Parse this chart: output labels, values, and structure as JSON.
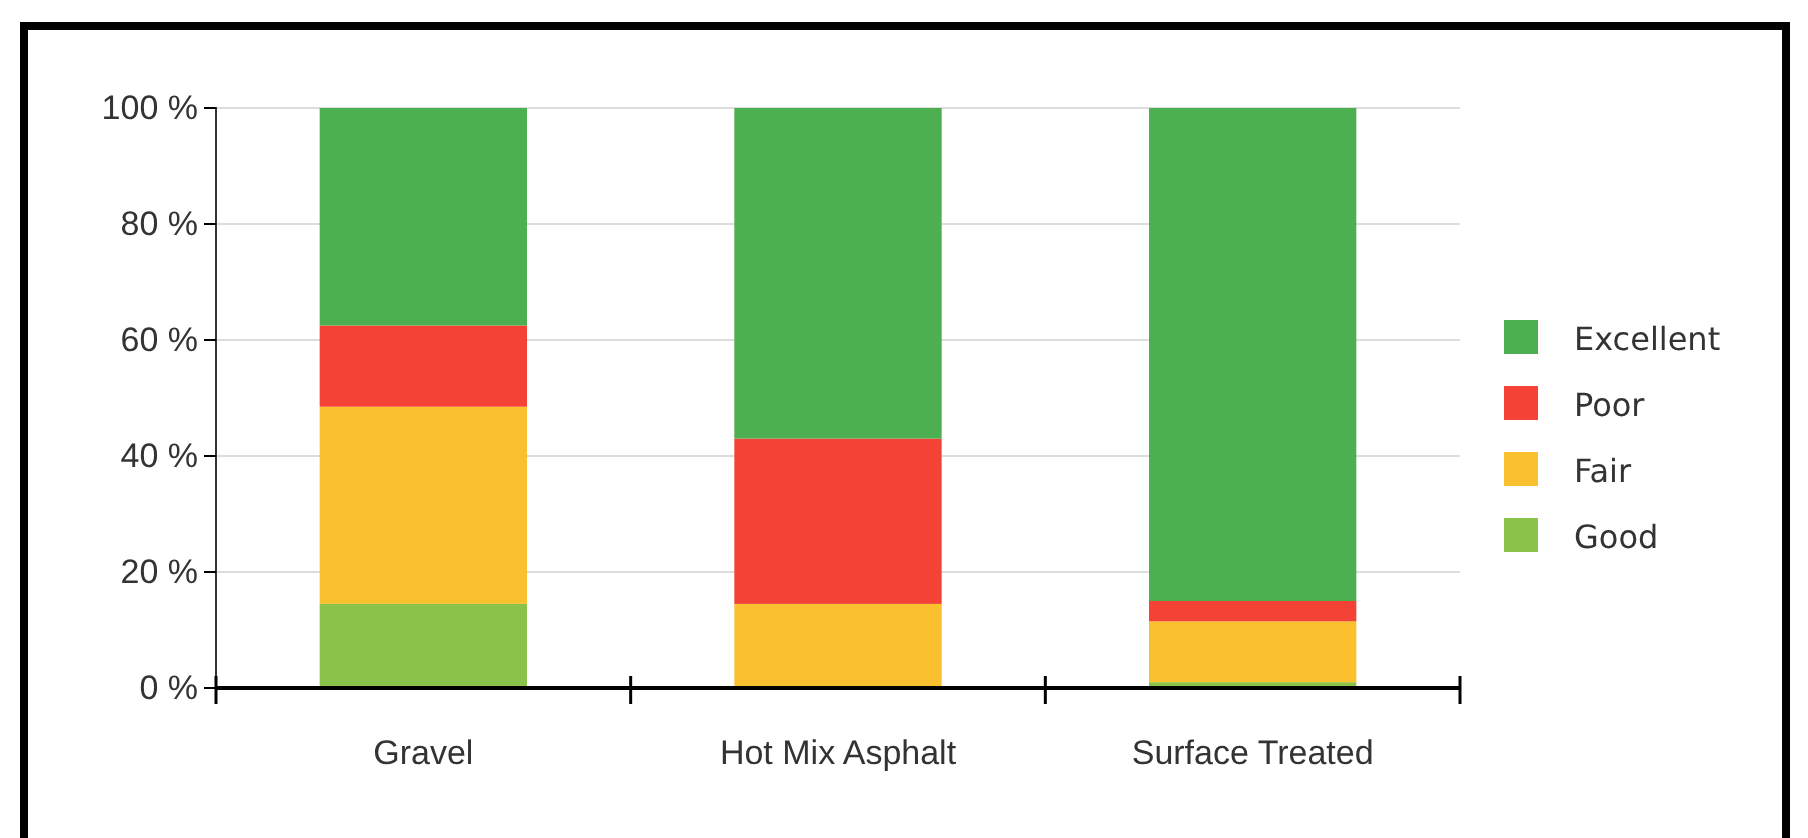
{
  "chart_data": {
    "type": "bar",
    "stacked": true,
    "categories": [
      "Gravel",
      "Hot Mix Asphalt",
      "Surface Treated"
    ],
    "series": [
      {
        "name": "Good",
        "color": "#8bc34a",
        "values": [
          14.5,
          0,
          1
        ]
      },
      {
        "name": "Fair",
        "color": "#fbc02d",
        "values": [
          34,
          14.5,
          10.5
        ]
      },
      {
        "name": "Poor",
        "color": "#f44336",
        "values": [
          14,
          28.5,
          3.5
        ]
      },
      {
        "name": "Excellent",
        "color": "#4caf50",
        "values": [
          37.5,
          57,
          85
        ]
      }
    ],
    "ylim": [
      0,
      100
    ],
    "yticks": [
      {
        "value": 0,
        "label": "0 %"
      },
      {
        "value": 20,
        "label": "20 %"
      },
      {
        "value": 40,
        "label": "40 %"
      },
      {
        "value": 60,
        "label": "60 %"
      },
      {
        "value": 80,
        "label": "80 %"
      },
      {
        "value": 100,
        "label": "100 %"
      }
    ],
    "grid": "y",
    "legend": "right"
  }
}
